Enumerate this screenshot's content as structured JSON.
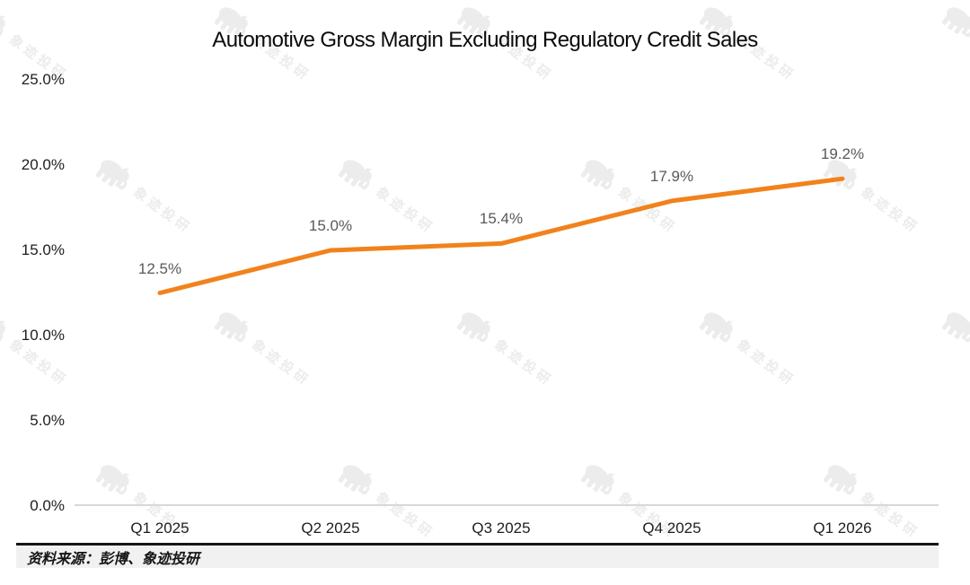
{
  "title": "Automotive Gross Margin Excluding Regulatory Credit Sales",
  "watermark": {
    "icon": "elephant-icon",
    "text": "象迹投研",
    "color": "#ececec"
  },
  "source_bar": {
    "text": "资料来源：彭博、象迹投研"
  },
  "chart_data": {
    "type": "line",
    "title": "Automotive Gross Margin Excluding Regulatory Credit Sales",
    "categories": [
      "Q1 2025",
      "Q2 2025",
      "Q3 2025",
      "Q4 2025",
      "Q1 2026"
    ],
    "values": [
      12.5,
      15.0,
      15.4,
      17.9,
      19.2
    ],
    "point_labels": [
      "12.5%",
      "15.0%",
      "15.4%",
      "17.9%",
      "19.2%"
    ],
    "ytick_labels": [
      "0.0%",
      "5.0%",
      "10.0%",
      "15.0%",
      "20.0%",
      "25.0%"
    ],
    "ylim": [
      0,
      25
    ],
    "xlabel": "",
    "ylabel": "",
    "grid": false,
    "legend_position": "none",
    "line_color": "#F1821C",
    "label_color": "#595959",
    "tick_color": "#1e1e1e",
    "axis_color": "#d8d8d8"
  }
}
